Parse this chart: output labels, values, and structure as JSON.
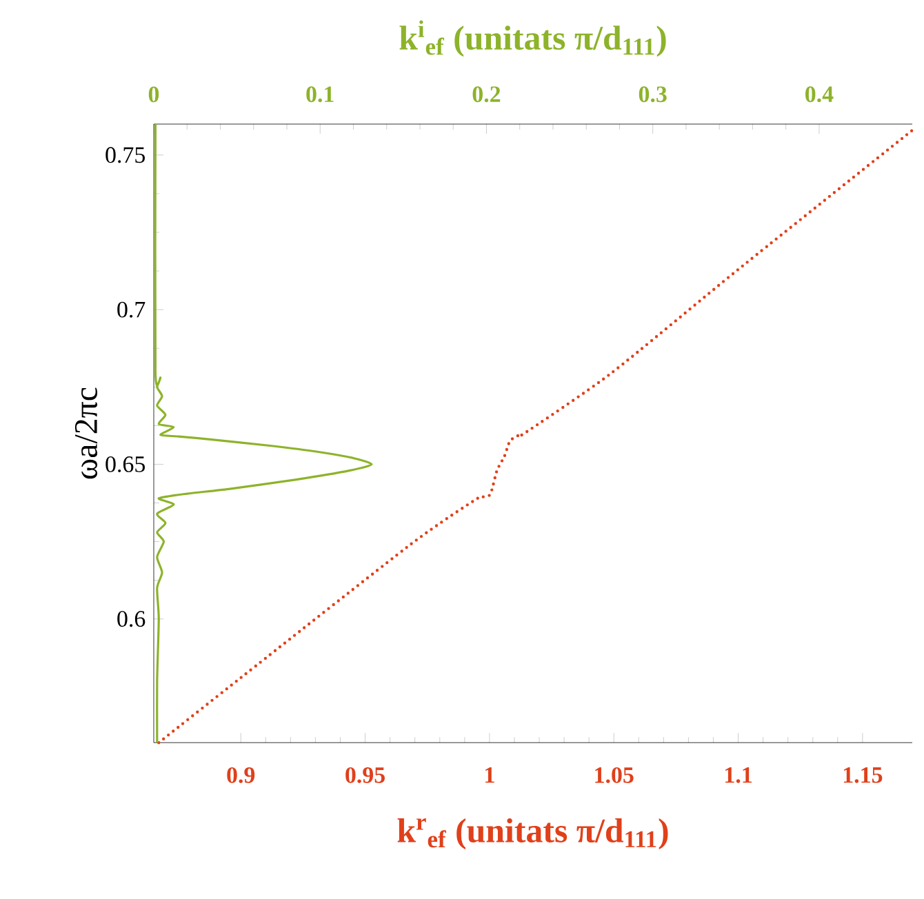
{
  "chart_data": {
    "type": "line",
    "xlabel": "k$^{r}$$_{ef}$ (unitats π/d$_{111}$)",
    "x2label": "k$^{i}$$_{ef}$ (unitats π/d$_{111}$)",
    "ylabel": "ωa/2πc",
    "xlim": [
      0.865,
      1.17
    ],
    "xticks": [
      0.9,
      0.95,
      1,
      1.05,
      1.1,
      1.15
    ],
    "x2lim": [
      0,
      0.456
    ],
    "x2ticks": [
      0,
      0.1,
      0.2,
      0.3,
      0.4
    ],
    "ylim": [
      0.56,
      0.76
    ],
    "yticks": [
      0.6,
      0.65,
      0.7,
      0.75
    ],
    "series": [
      {
        "color": "#e0401a",
        "line_style": "dotted",
        "x": [
          0.867,
          0.9,
          0.9686,
          0.9944,
          0.9976,
          1.0004,
          1.003,
          1.006,
          1.0082,
          1.0115,
          1.014,
          1.049,
          1.1,
          1.17
        ],
        "values": [
          0.56,
          0.581,
          0.6243,
          0.6386,
          0.6395,
          0.6404,
          0.648,
          0.6526,
          0.6575,
          0.6593,
          0.66,
          0.6795,
          0.713,
          0.758
        ]
      },
      {
        "color": "#8db32a",
        "line_style": "solid",
        "axis": "x2",
        "x": [
          0.002,
          0.002,
          0.003,
          0.002,
          0.005,
          0.002,
          0.006,
          0.002,
          0.007,
          0.002,
          0.012,
          0.003,
          0.02,
          0.045,
          0.085,
          0.118,
          0.131,
          0.12,
          0.099,
          0.07,
          0.035,
          0.015,
          0.004,
          0.012,
          0.003,
          0.007,
          0.002,
          0.005,
          0.002,
          0.004,
          0.001,
          0.001
        ],
        "values": [
          0.56,
          0.58,
          0.6,
          0.61,
          0.615,
          0.62,
          0.625,
          0.628,
          0.631,
          0.634,
          0.637,
          0.639,
          0.6405,
          0.642,
          0.645,
          0.648,
          0.65,
          0.652,
          0.654,
          0.656,
          0.658,
          0.659,
          0.6595,
          0.662,
          0.663,
          0.666,
          0.669,
          0.672,
          0.675,
          0.678,
          0.68,
          0.76
        ]
      }
    ]
  }
}
